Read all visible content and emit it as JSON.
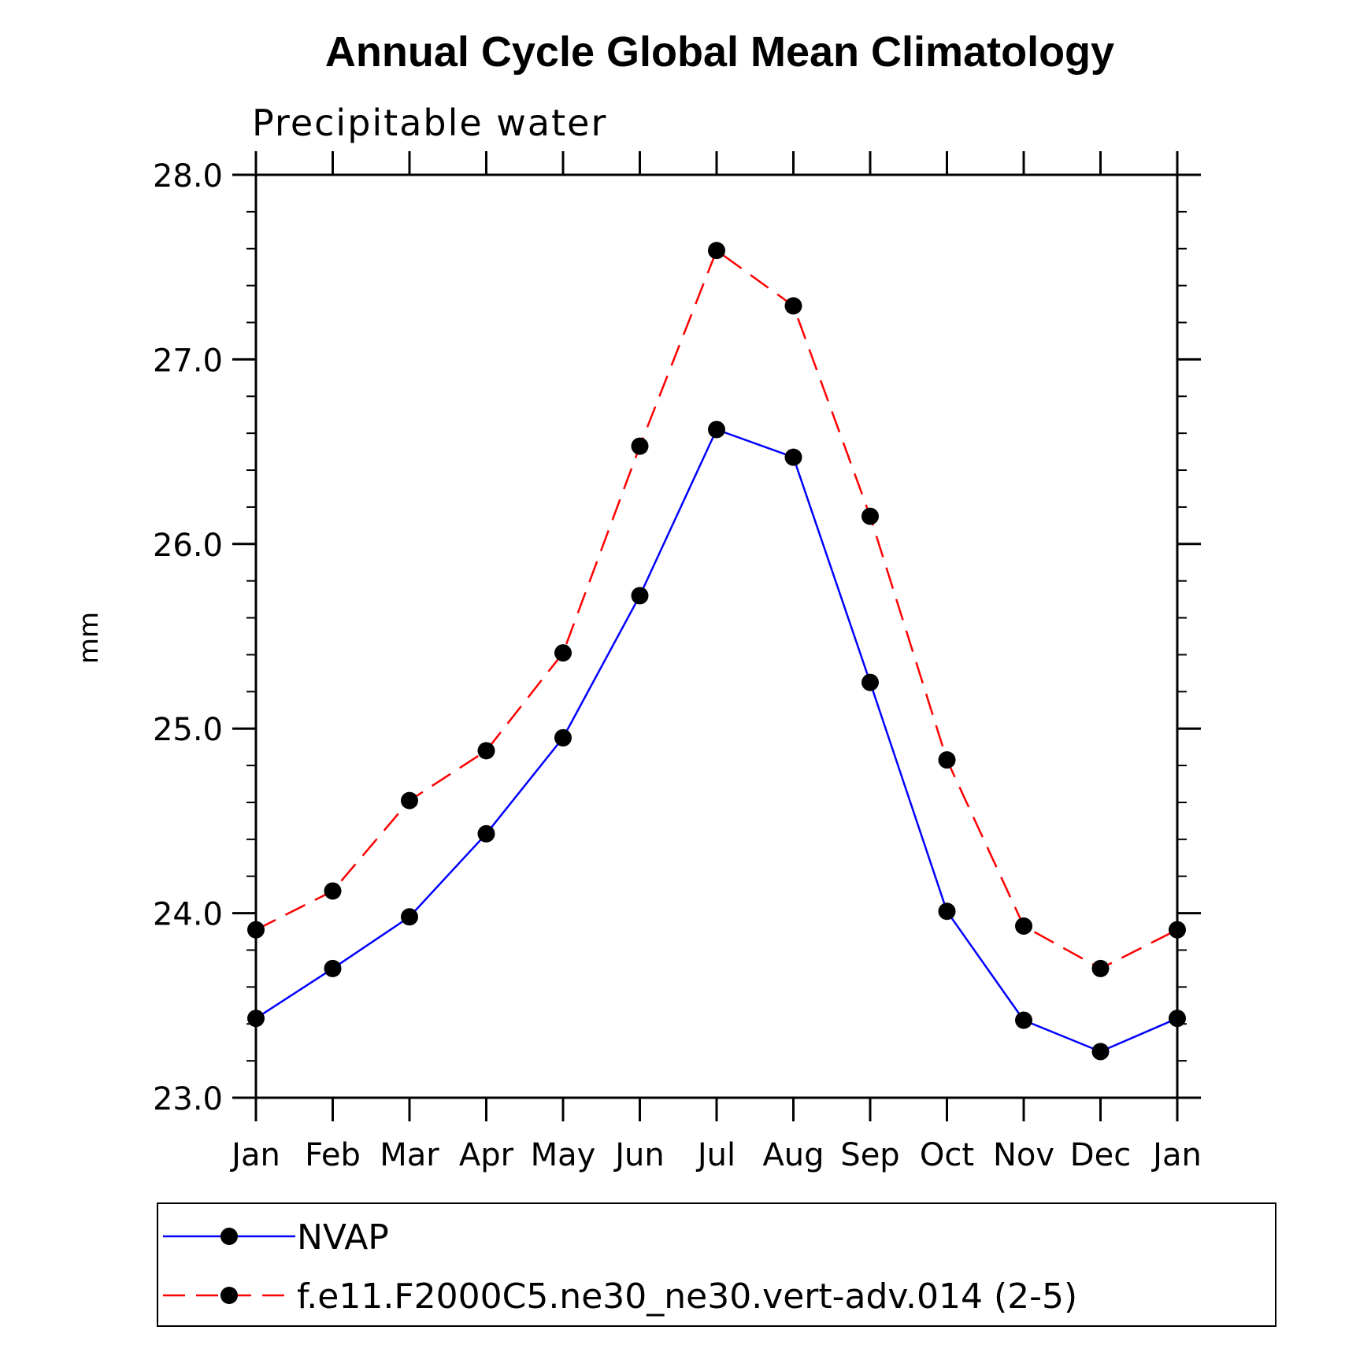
{
  "chart_data": {
    "type": "line",
    "title": "Annual Cycle Global Mean Climatology",
    "subtitle": "Precipitable water",
    "xlabel": "",
    "ylabel": "mm",
    "categories": [
      "Jan",
      "Feb",
      "Mar",
      "Apr",
      "May",
      "Jun",
      "Jul",
      "Aug",
      "Sep",
      "Oct",
      "Nov",
      "Dec",
      "Jan"
    ],
    "ylim": [
      23.0,
      28.0
    ],
    "yticks": [
      "23.0",
      "24.0",
      "25.0",
      "26.0",
      "27.0",
      "28.0"
    ],
    "legend_position": "bottom",
    "series": [
      {
        "name": "NVAP",
        "color": "#0000ff",
        "style": "solid",
        "values": [
          23.43,
          23.7,
          23.98,
          24.43,
          24.95,
          25.72,
          26.62,
          26.47,
          25.25,
          24.01,
          23.42,
          23.25,
          23.43
        ]
      },
      {
        "name": "f.e11.F2000C5.ne30_ne30.vert-adv.014 (2-5)",
        "color": "#ff0000",
        "style": "dashed",
        "values": [
          23.91,
          24.12,
          24.61,
          24.88,
          25.41,
          26.53,
          27.59,
          27.29,
          26.15,
          24.83,
          23.93,
          23.7,
          23.91
        ]
      }
    ]
  }
}
